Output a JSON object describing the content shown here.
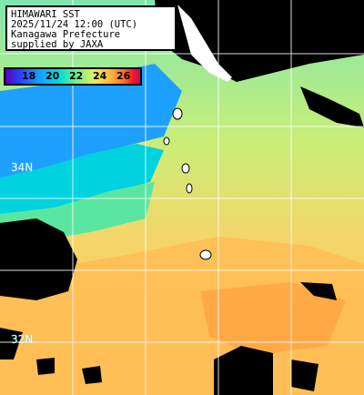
{
  "title_lines": [
    "HIMAWARI SST",
    "2025/11/24 12:00 (UTC)",
    "Kanagawa Prefecture",
    "supplied by JAXA"
  ],
  "legend": {
    "ticks": [
      "18",
      "20",
      "22",
      "24",
      "26"
    ],
    "colors": [
      "#5a00b4",
      "#2a3cff",
      "#14a0ff",
      "#00dcdc",
      "#6ef08c",
      "#e6f05a",
      "#ffb43c",
      "#ff6e28",
      "#ff1e1e",
      "#c8007a"
    ]
  },
  "grid_labels": {
    "lat_34": "34N",
    "lat_32": "32N"
  },
  "colors": {
    "land": "#000000",
    "cold_water": "#1ea0ff",
    "mid_water": "#7ff0a0",
    "warm_water": "#ffc05a",
    "grid": "#ffffff"
  }
}
